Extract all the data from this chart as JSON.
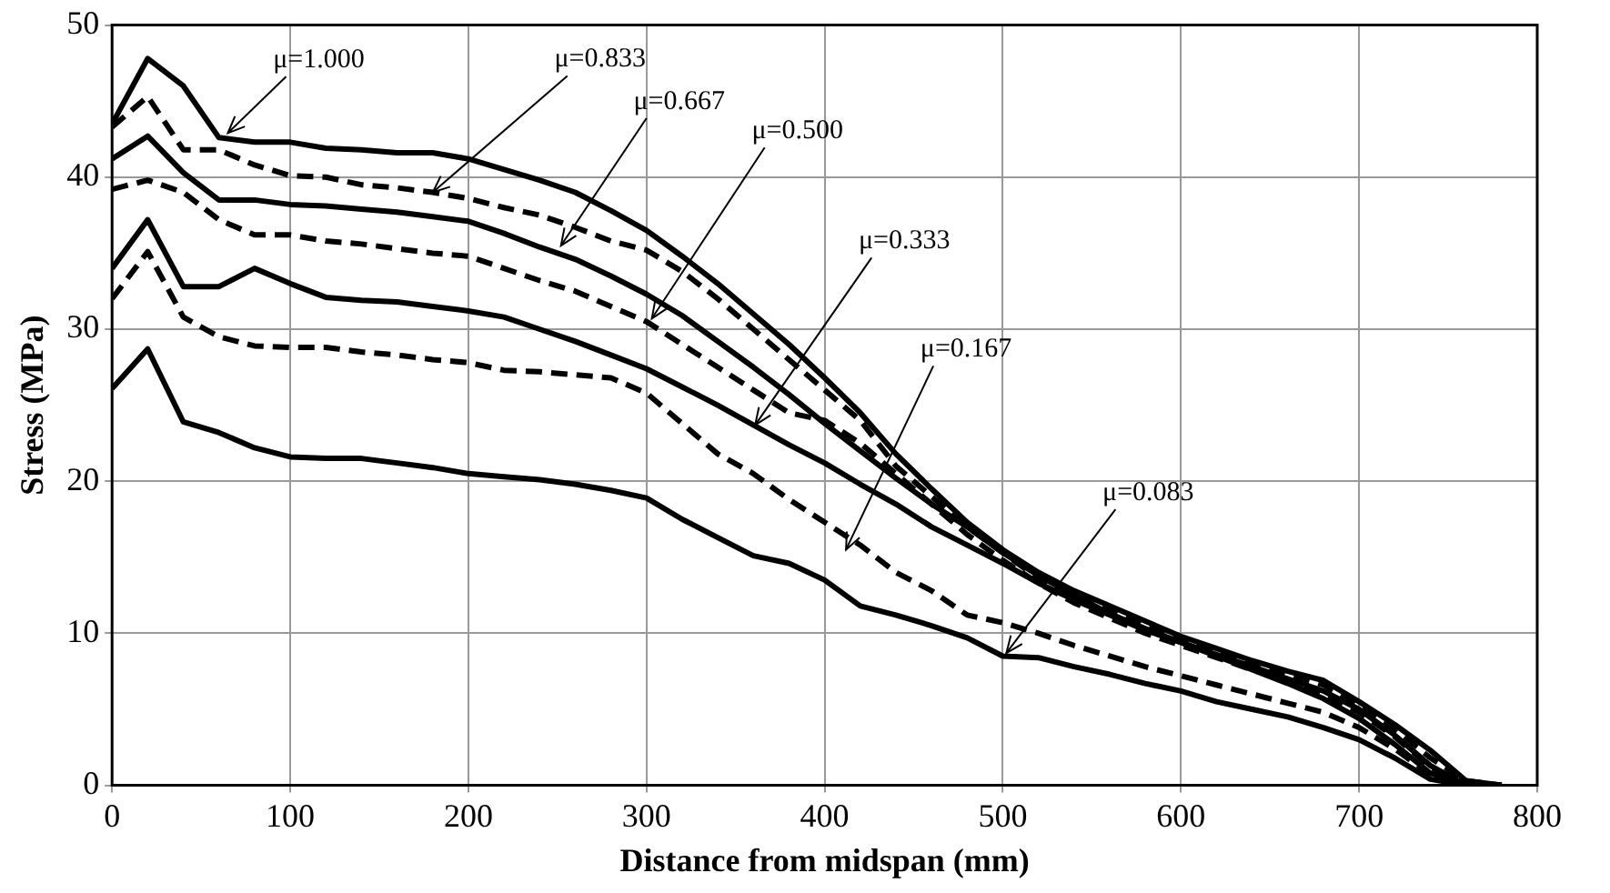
{
  "chart_data": {
    "type": "line",
    "xlabel": "Distance from midspan (mm)",
    "ylabel": "Stress (MPa)",
    "x": [
      0,
      20,
      40,
      60,
      80,
      100,
      120,
      140,
      160,
      180,
      200,
      220,
      240,
      260,
      280,
      300,
      320,
      340,
      360,
      380,
      400,
      420,
      440,
      460,
      480,
      500,
      520,
      540,
      560,
      580,
      600,
      620,
      640,
      660,
      680,
      700,
      720,
      740,
      760,
      780
    ],
    "xlim": [
      0,
      800
    ],
    "xticks": [
      0,
      100,
      200,
      300,
      400,
      500,
      600,
      700,
      800
    ],
    "ylim": [
      0,
      50
    ],
    "yticks": [
      0,
      10,
      20,
      30,
      40,
      50
    ],
    "grid": true,
    "legend": false,
    "marker": "none",
    "series": [
      {
        "color": "#000000",
        "line_style": "solid",
        "values": [
          43.5,
          47.8,
          46,
          42.6,
          42.3,
          42.3,
          41.9,
          41.8,
          41.6,
          41.6,
          41.2,
          40.5,
          39.8,
          39,
          37.8,
          36.5,
          34.8,
          33,
          31,
          29,
          26.8,
          24.5,
          21.8,
          19.5,
          17.3,
          15.5,
          14,
          12.8,
          11.8,
          10.8,
          9.8,
          9,
          8.2,
          7.5,
          6.9,
          5.5,
          4,
          2.3,
          0.3,
          0
        ]
      },
      {
        "color": "#000000",
        "line_style": "dashed",
        "values": [
          43.3,
          45.3,
          41.8,
          41.8,
          40.8,
          40.1,
          40,
          39.5,
          39.3,
          39,
          38.6,
          38,
          37.5,
          36.7,
          35.8,
          35.2,
          33.8,
          32,
          30,
          28,
          26,
          24,
          21,
          19,
          17,
          15.3,
          13.6,
          12.5,
          11.5,
          10.5,
          9.6,
          8.8,
          8,
          7.3,
          6.6,
          5.3,
          3.7,
          1.8,
          0.3,
          0
        ]
      },
      {
        "color": "#000000",
        "line_style": "solid",
        "values": [
          41.2,
          42.7,
          40.3,
          38.5,
          38.5,
          38.2,
          38.1,
          37.9,
          37.7,
          37.4,
          37.1,
          36.3,
          35.4,
          34.6,
          33.5,
          32.3,
          30.9,
          29.2,
          27.5,
          25.7,
          23.8,
          22,
          20.2,
          18.5,
          17,
          15.3,
          13.8,
          12.5,
          11.3,
          10.3,
          9.4,
          8.6,
          7.8,
          7,
          6.2,
          5,
          3.3,
          1.3,
          0,
          0
        ]
      },
      {
        "color": "#000000",
        "line_style": "dashed",
        "values": [
          39.2,
          39.8,
          39,
          37.2,
          36.2,
          36.2,
          35.8,
          35.6,
          35.3,
          35,
          34.8,
          34,
          33.2,
          32.5,
          31.5,
          30.5,
          29,
          27.5,
          26,
          24.5,
          24,
          22.5,
          20.5,
          18.5,
          16.5,
          14.8,
          13.3,
          12,
          11,
          10,
          9.2,
          8.4,
          7.6,
          6.8,
          6,
          4.8,
          3.2,
          1.2,
          0,
          0
        ]
      },
      {
        "color": "#000000",
        "line_style": "solid",
        "values": [
          34,
          37.2,
          32.8,
          32.8,
          34,
          33,
          32.1,
          31.9,
          31.8,
          31.5,
          31.2,
          30.8,
          30,
          29.2,
          28.3,
          27.4,
          26.2,
          25,
          23.7,
          22.4,
          21.2,
          19.8,
          18.5,
          17,
          15.8,
          14.6,
          13.3,
          12.2,
          11.2,
          10.2,
          9.4,
          8.5,
          7.6,
          6.7,
          5.7,
          4.4,
          2.7,
          0.8,
          0,
          0
        ]
      },
      {
        "color": "#000000",
        "line_style": "dashed",
        "values": [
          32,
          35.1,
          30.8,
          29.5,
          28.9,
          28.8,
          28.8,
          28.5,
          28.3,
          28,
          27.8,
          27.3,
          27.2,
          27,
          26.8,
          25.8,
          23.8,
          21.8,
          20.5,
          18.8,
          17.3,
          15.8,
          14,
          12.8,
          11.2,
          10.7,
          10,
          9.2,
          8.5,
          7.8,
          7.2,
          6.6,
          6,
          5.4,
          4.8,
          3.8,
          2.4,
          0.7,
          0,
          0
        ]
      },
      {
        "color": "#000000",
        "line_style": "solid",
        "values": [
          26.1,
          28.7,
          23.9,
          23.2,
          22.2,
          21.6,
          21.5,
          21.5,
          21.2,
          20.9,
          20.5,
          20.3,
          20.1,
          19.8,
          19.4,
          18.9,
          17.5,
          16.3,
          15.1,
          14.6,
          13.5,
          11.8,
          11.2,
          10.5,
          9.7,
          8.5,
          8.4,
          7.8,
          7.3,
          6.7,
          6.2,
          5.5,
          5,
          4.5,
          3.8,
          3,
          1.8,
          0.4,
          0,
          0
        ]
      }
    ],
    "annotations": [
      {
        "text": "μ=1.000",
        "x": 65,
        "y": 42.9
      },
      {
        "text": "μ=0.833",
        "x": 180,
        "y": 39
      },
      {
        "text": "μ=0.667",
        "x": 252,
        "y": 35.5
      },
      {
        "text": "μ=0.500",
        "x": 303,
        "y": 30.7
      },
      {
        "text": "μ=0.333",
        "x": 361,
        "y": 23.7
      },
      {
        "text": "μ=0.167",
        "x": 412,
        "y": 15.5
      },
      {
        "text": "μ=0.083",
        "x": 502,
        "y": 8.7
      }
    ]
  }
}
